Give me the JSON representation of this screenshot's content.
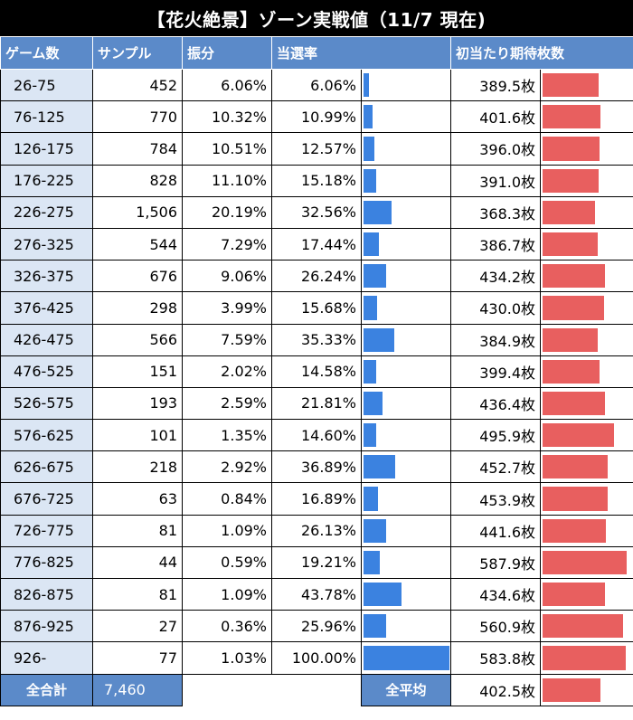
{
  "title": "【花火絶景】ゾーン実戦値（11/7 現在)",
  "headers": {
    "games": "ゲーム数",
    "sample": "サンプル",
    "distribution": "振分",
    "hit_rate": "当選率",
    "expected": "初当たり期待枚数"
  },
  "colors": {
    "header": "#5b8ac9",
    "range_bg": "#dbe6f4",
    "hit_bar": "#3b82e0",
    "expected_bar": "#e85f5f"
  },
  "chart_data": {
    "type": "table",
    "columns": [
      "ゲーム数",
      "サンプル",
      "振分",
      "当選率",
      "初当たり期待枚数"
    ],
    "rows": [
      {
        "range": "26-75",
        "sample": "452",
        "dist": "6.06%",
        "hit": "6.06%",
        "hit_value": 6.06,
        "exp": "389.5枚",
        "exp_value": 389.5
      },
      {
        "range": "76-125",
        "sample": "770",
        "dist": "10.32%",
        "hit": "10.99%",
        "hit_value": 10.99,
        "exp": "401.6枚",
        "exp_value": 401.6
      },
      {
        "range": "126-175",
        "sample": "784",
        "dist": "10.51%",
        "hit": "12.57%",
        "hit_value": 12.57,
        "exp": "396.0枚",
        "exp_value": 396.0
      },
      {
        "range": "176-225",
        "sample": "828",
        "dist": "11.10%",
        "hit": "15.18%",
        "hit_value": 15.18,
        "exp": "391.0枚",
        "exp_value": 391.0
      },
      {
        "range": "226-275",
        "sample": "1,506",
        "dist": "20.19%",
        "hit": "32.56%",
        "hit_value": 32.56,
        "exp": "368.3枚",
        "exp_value": 368.3
      },
      {
        "range": "276-325",
        "sample": "544",
        "dist": "7.29%",
        "hit": "17.44%",
        "hit_value": 17.44,
        "exp": "386.7枚",
        "exp_value": 386.7
      },
      {
        "range": "326-375",
        "sample": "676",
        "dist": "9.06%",
        "hit": "26.24%",
        "hit_value": 26.24,
        "exp": "434.2枚",
        "exp_value": 434.2
      },
      {
        "range": "376-425",
        "sample": "298",
        "dist": "3.99%",
        "hit": "15.68%",
        "hit_value": 15.68,
        "exp": "430.0枚",
        "exp_value": 430.0
      },
      {
        "range": "426-475",
        "sample": "566",
        "dist": "7.59%",
        "hit": "35.33%",
        "hit_value": 35.33,
        "exp": "384.9枚",
        "exp_value": 384.9
      },
      {
        "range": "476-525",
        "sample": "151",
        "dist": "2.02%",
        "hit": "14.58%",
        "hit_value": 14.58,
        "exp": "399.4枚",
        "exp_value": 399.4
      },
      {
        "range": "526-575",
        "sample": "193",
        "dist": "2.59%",
        "hit": "21.81%",
        "hit_value": 21.81,
        "exp": "436.4枚",
        "exp_value": 436.4
      },
      {
        "range": "576-625",
        "sample": "101",
        "dist": "1.35%",
        "hit": "14.60%",
        "hit_value": 14.6,
        "exp": "495.9枚",
        "exp_value": 495.9
      },
      {
        "range": "626-675",
        "sample": "218",
        "dist": "2.92%",
        "hit": "36.89%",
        "hit_value": 36.89,
        "exp": "452.7枚",
        "exp_value": 452.7
      },
      {
        "range": "676-725",
        "sample": "63",
        "dist": "0.84%",
        "hit": "16.89%",
        "hit_value": 16.89,
        "exp": "453.9枚",
        "exp_value": 453.9
      },
      {
        "range": "726-775",
        "sample": "81",
        "dist": "1.09%",
        "hit": "26.13%",
        "hit_value": 26.13,
        "exp": "441.6枚",
        "exp_value": 441.6
      },
      {
        "range": "776-825",
        "sample": "44",
        "dist": "0.59%",
        "hit": "19.21%",
        "hit_value": 19.21,
        "exp": "587.9枚",
        "exp_value": 587.9
      },
      {
        "range": "826-875",
        "sample": "81",
        "dist": "1.09%",
        "hit": "43.78%",
        "hit_value": 43.78,
        "exp": "434.6枚",
        "exp_value": 434.6
      },
      {
        "range": "876-925",
        "sample": "27",
        "dist": "0.36%",
        "hit": "25.96%",
        "hit_value": 25.96,
        "exp": "560.9枚",
        "exp_value": 560.9
      },
      {
        "range": "926-",
        "sample": "77",
        "dist": "1.03%",
        "hit": "100.00%",
        "hit_value": 100.0,
        "exp": "583.8枚",
        "exp_value": 583.8
      }
    ],
    "hit_bar_max": 100,
    "expected_bar_range": [
      0,
      600
    ]
  },
  "totals": {
    "sample_label": "全合計",
    "sample_value": "7,460",
    "avg_label": "全平均",
    "avg_value": "402.5枚",
    "avg_exp_value": 402.5
  }
}
